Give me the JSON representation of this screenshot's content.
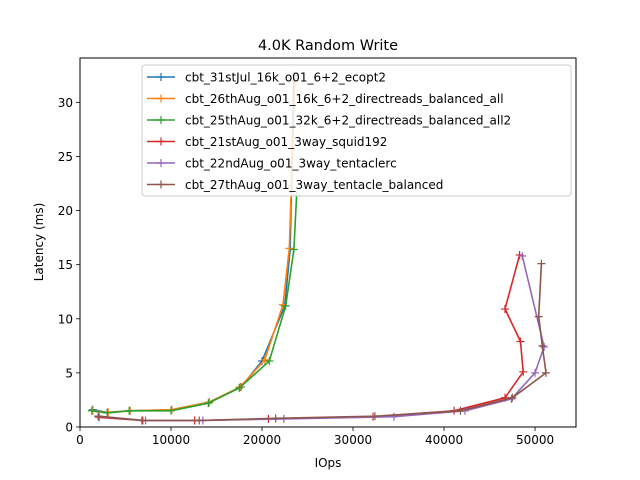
{
  "chart_data": {
    "type": "line",
    "title": "4.0K  Random Write",
    "xlabel": "IOps",
    "ylabel": "Latency (ms)",
    "xlim": [
      0,
      54500
    ],
    "ylim": [
      0,
      34.1
    ],
    "xticks": [
      0,
      10000,
      20000,
      30000,
      40000,
      50000
    ],
    "yticks": [
      0,
      5,
      10,
      15,
      20,
      25,
      30
    ],
    "grid": false,
    "legend_position": "top-center",
    "series": [
      {
        "name": "cbt_31stJul_16k_o01_6+2_ecopt2",
        "color": "#1f77b4",
        "x": [
          1400,
          3000,
          5500,
          10100,
          14200,
          17700,
          20000,
          22500,
          23100,
          23500
        ],
        "y": [
          1.6,
          1.35,
          1.5,
          1.6,
          2.3,
          3.7,
          6.1,
          11.2,
          16.5,
          32.5
        ]
      },
      {
        "name": "cbt_26thAug_o01_16k_6+2_directreads_balanced_all",
        "color": "#ff7f0e",
        "x": [
          1400,
          3100,
          5500,
          10100,
          14200,
          17600,
          20300,
          22300,
          23000,
          23600
        ],
        "y": [
          1.5,
          1.35,
          1.5,
          1.6,
          2.3,
          3.7,
          6.2,
          11.3,
          16.5,
          32.0
        ]
      },
      {
        "name": "cbt_25thAug_o01_32k_6+2_directreads_balanced_all2",
        "color": "#2ca02c",
        "x": [
          1300,
          3000,
          5400,
          10000,
          14100,
          17500,
          20800,
          22600,
          23500,
          23800
        ],
        "y": [
          1.5,
          1.3,
          1.5,
          1.5,
          2.2,
          3.6,
          6.1,
          11.2,
          16.4,
          21.4
        ]
      },
      {
        "name": "cbt_21stAug_o01_3way_squid192",
        "color": "#d62728",
        "x": [
          2100,
          6900,
          12600,
          20700,
          32200,
          41100,
          46700,
          48700,
          48400,
          46700,
          48300
        ],
        "y": [
          0.9,
          0.6,
          0.6,
          0.75,
          0.95,
          1.5,
          2.7,
          5.1,
          7.9,
          10.9,
          15.9
        ]
      },
      {
        "name": "cbt_22ndAug_o01_3way_tentaclerc",
        "color": "#9467bd",
        "x": [
          2000,
          7200,
          13500,
          22400,
          34500,
          42300,
          47400,
          50000,
          51000,
          48600
        ],
        "y": [
          1.0,
          0.6,
          0.6,
          0.75,
          0.95,
          1.5,
          2.6,
          5.0,
          7.4,
          15.8
        ]
      },
      {
        "name": "cbt_27thAug_o01_3way_tentacle_balanced",
        "color": "#8c564b",
        "x": [
          2000,
          6800,
          13100,
          21500,
          32400,
          41800,
          47500,
          51200,
          50800,
          50400,
          50700
        ],
        "y": [
          1.0,
          0.6,
          0.6,
          0.8,
          1.0,
          1.5,
          2.7,
          5.0,
          7.5,
          10.2,
          15.1
        ]
      }
    ]
  }
}
